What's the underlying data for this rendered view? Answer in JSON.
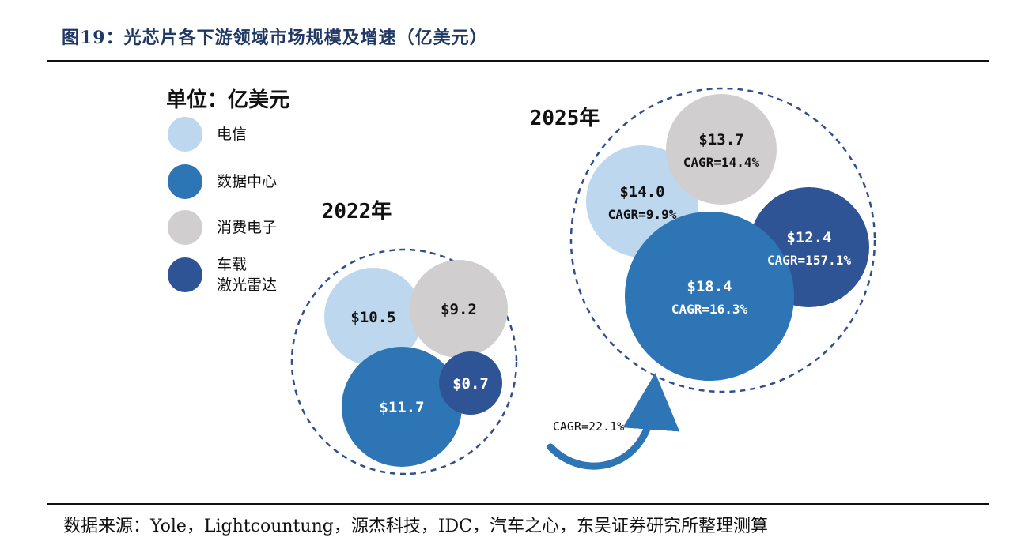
{
  "header": {
    "title": "图19：光芯片各下游领域市场规模及增速（亿美元）"
  },
  "footer": {
    "source": "数据来源：Yole，Lightcountung，源杰科技，IDC，汽车之心，东吴证券研究所整理测算"
  },
  "legend": {
    "unit": "单位：亿美元",
    "items": [
      {
        "label": "电信",
        "color": "#bdd7ee"
      },
      {
        "label": "数据中心",
        "color": "#2e75b6"
      },
      {
        "label": "消费电子",
        "color": "#d0cece"
      },
      {
        "label": "车载\n激光雷达",
        "color": "#2f5496"
      }
    ]
  },
  "chart_data": {
    "type": "bubble",
    "categories": [
      "电信",
      "数据中心",
      "消费电子",
      "车载激光雷达"
    ],
    "growth_label": "CAGR=22.1%",
    "groups": [
      {
        "year": "2022年",
        "bubbles": [
          {
            "category": "电信",
            "value": 10.5,
            "label": "$10.5",
            "cagr": ""
          },
          {
            "category": "消费电子",
            "value": 9.2,
            "label": "$9.2",
            "cagr": ""
          },
          {
            "category": "数据中心",
            "value": 11.7,
            "label": "$11.7",
            "cagr": ""
          },
          {
            "category": "车载激光雷达",
            "value": 0.7,
            "label": "$0.7",
            "cagr": ""
          }
        ]
      },
      {
        "year": "2025年",
        "bubbles": [
          {
            "category": "电信",
            "value": 14.0,
            "label": "$14.0",
            "cagr": "CAGR=9.9%"
          },
          {
            "category": "消费电子",
            "value": 13.7,
            "label": "$13.7",
            "cagr": "CAGR=14.4%"
          },
          {
            "category": "车载激光雷达",
            "value": 12.4,
            "label": "$12.4",
            "cagr": "CAGR=157.1%"
          },
          {
            "category": "数据中心",
            "value": 18.4,
            "label": "$18.4",
            "cagr": "CAGR=16.3%"
          }
        ]
      }
    ],
    "colors": {
      "电信": "#bdd7ee",
      "数据中心": "#2e75b6",
      "消费电子": "#d0cece",
      "车载激光雷达": "#2f5496",
      "outline": "#2f4f8f",
      "arrow": "#2e75b6"
    }
  }
}
